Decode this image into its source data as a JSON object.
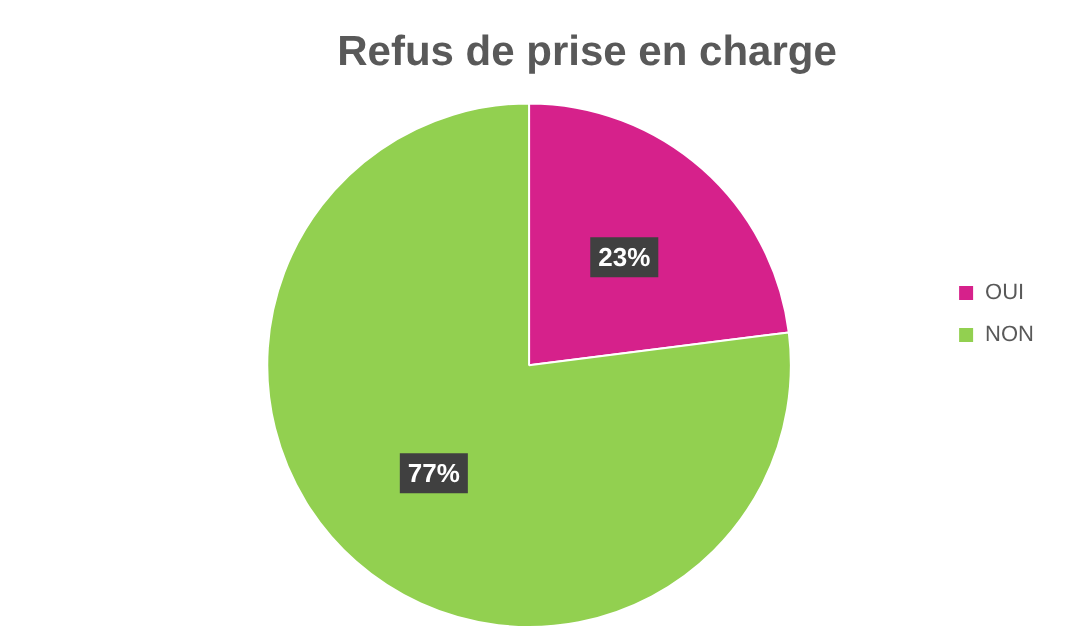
{
  "chart_data": {
    "type": "pie",
    "title": "Refus de prise en charge",
    "categories": [
      "OUI",
      "NON"
    ],
    "values": [
      23,
      77
    ],
    "colors": [
      "#d6218b",
      "#92d050"
    ],
    "value_labels": [
      "23%",
      "77%"
    ],
    "legend": "right"
  }
}
